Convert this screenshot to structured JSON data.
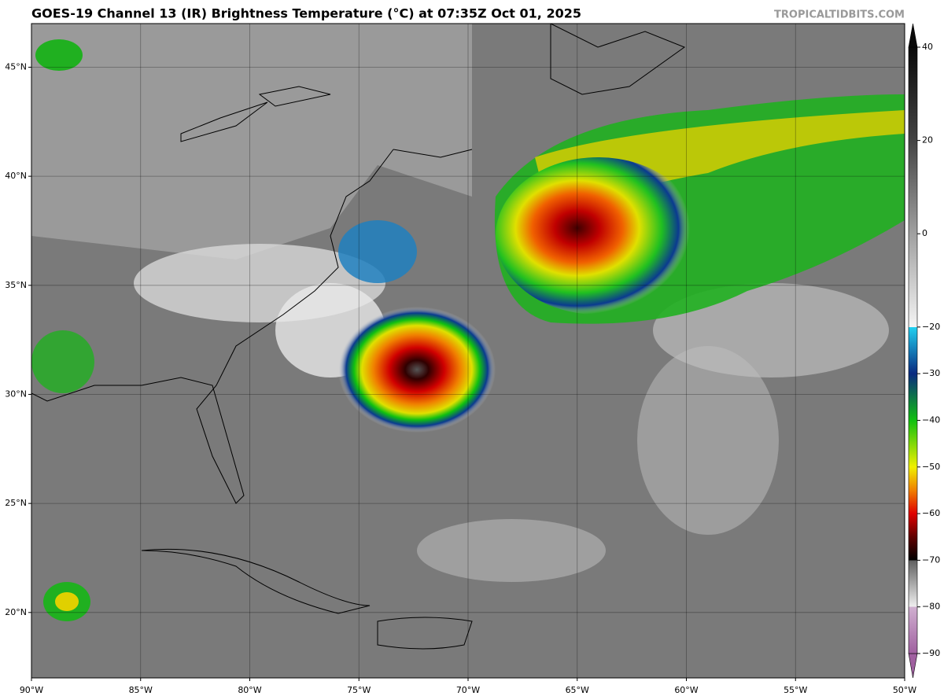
{
  "title": "GOES-19 Channel 13 (IR) Brightness Temperature (°C) at 07:35Z Oct 01, 2025",
  "credit": "TROPICALTIDBITS.COM",
  "map": {
    "lonlim": [
      -90,
      -50
    ],
    "latlim": [
      17,
      47
    ],
    "lonticks": [
      {
        "value": -90,
        "label": "90°W"
      },
      {
        "value": -85,
        "label": "85°W"
      },
      {
        "value": -80,
        "label": "80°W"
      },
      {
        "value": -75,
        "label": "75°W"
      },
      {
        "value": -70,
        "label": "70°W"
      },
      {
        "value": -65,
        "label": "65°W"
      },
      {
        "value": -60,
        "label": "60°W"
      },
      {
        "value": -55,
        "label": "55°W"
      },
      {
        "value": -50,
        "label": "50°W"
      }
    ],
    "latticks": [
      {
        "value": 20,
        "label": "20°N"
      },
      {
        "value": 25,
        "label": "25°N"
      },
      {
        "value": 30,
        "label": "30°N"
      },
      {
        "value": 35,
        "label": "35°N"
      },
      {
        "value": 40,
        "label": "40°N"
      },
      {
        "value": 45,
        "label": "45°N"
      }
    ],
    "grid": true
  },
  "colorbar": {
    "clim": [
      -90,
      40
    ],
    "ticks": [
      40,
      20,
      0,
      {
        "value": -20,
        "label": "−20"
      },
      {
        "value": -30,
        "label": "−30"
      },
      {
        "value": -40,
        "label": "−40"
      },
      {
        "value": -50,
        "label": "−50"
      },
      {
        "value": -60,
        "label": "−60"
      },
      {
        "value": -70,
        "label": "−70"
      },
      {
        "value": -80,
        "label": "−80"
      },
      {
        "value": -90,
        "label": "−90"
      }
    ],
    "stops": [
      {
        "value": 40,
        "color": "#0a0a0a"
      },
      {
        "value": 20,
        "color": "#444444"
      },
      {
        "value": 0,
        "color": "#a0a0a0"
      },
      {
        "value": -20,
        "color": "#f4f4f4"
      },
      {
        "value": -20,
        "color": "#20d0f0"
      },
      {
        "value": -30,
        "color": "#0a2a80"
      },
      {
        "value": -40,
        "color": "#10c010"
      },
      {
        "value": -50,
        "color": "#f0f000"
      },
      {
        "value": -55,
        "color": "#f08000"
      },
      {
        "value": -60,
        "color": "#e00000"
      },
      {
        "value": -65,
        "color": "#600000"
      },
      {
        "value": -70,
        "color": "#000000"
      },
      {
        "value": -70,
        "color": "#606060"
      },
      {
        "value": -80,
        "color": "#f0f0f0"
      },
      {
        "value": -80,
        "color": "#d0b0d0"
      },
      {
        "value": -90,
        "color": "#a060a0"
      }
    ]
  }
}
